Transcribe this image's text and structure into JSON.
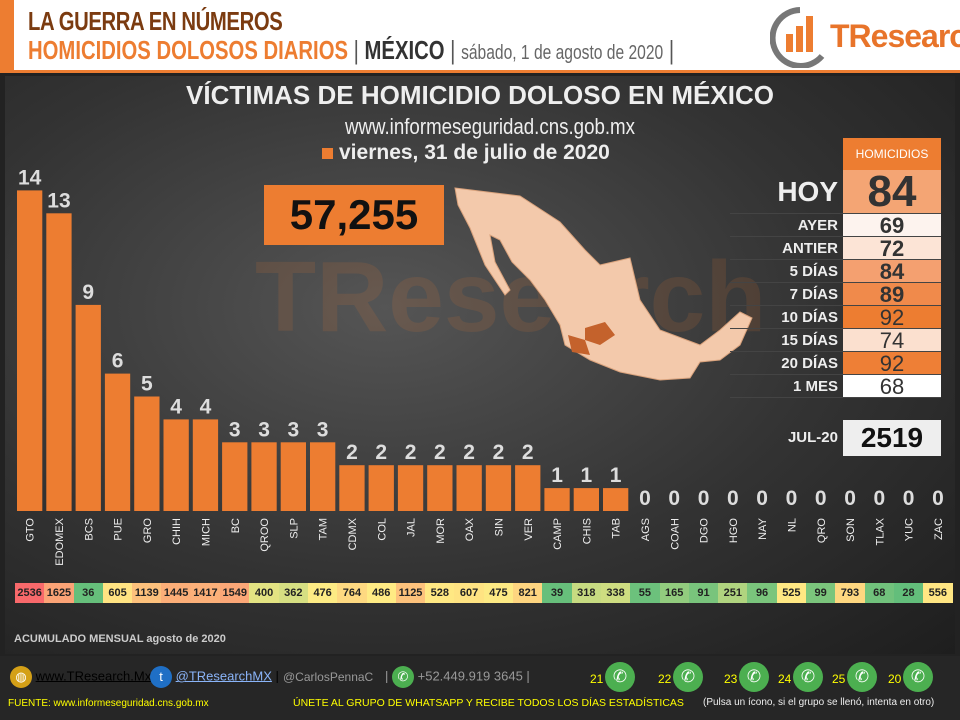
{
  "header": {
    "line1": "LA GUERRA EN NÚMEROS",
    "line2_orange": "HOMICIDIOS DOLOSOS DIARIOS",
    "country": "MÉXICO",
    "date": "sábado, 1 de agosto de 2020",
    "logo": "TResearch"
  },
  "colors": {
    "accent": "#ed7d31",
    "bar": "#ed7d31",
    "heat_low": "#63be7b",
    "heat_mid": "#ffeb84",
    "heat_high": "#f8696b"
  },
  "chart_data": {
    "type": "bar",
    "title": "VÍCTIMAS DE HOMICIDIO DOLOSO EN MÉXICO",
    "subtitle": "www.informeseguridad.cns.gob.mx",
    "legend": "viernes, 31 de julio de 2020",
    "categories": [
      "GTO",
      "EDOMEX",
      "BCS",
      "PUE",
      "GRO",
      "CHIH",
      "MICH",
      "BC",
      "QROO",
      "SLP",
      "TAM",
      "CDMX",
      "COL",
      "JAL",
      "MOR",
      "OAX",
      "SIN",
      "VER",
      "CAMP",
      "CHIS",
      "TAB",
      "AGS",
      "COAH",
      "DGO",
      "HGO",
      "NAY",
      "NL",
      "QRO",
      "SON",
      "TLAX",
      "YUC",
      "ZAC"
    ],
    "values": [
      14,
      13,
      9,
      6,
      5,
      4,
      4,
      3,
      3,
      3,
      3,
      2,
      2,
      2,
      2,
      2,
      2,
      2,
      1,
      1,
      1,
      0,
      0,
      0,
      0,
      0,
      0,
      0,
      0,
      0,
      0,
      0
    ],
    "monthly_accumulated": [
      2536,
      1625,
      36,
      605,
      1139,
      1445,
      1417,
      1549,
      400,
      362,
      476,
      764,
      486,
      1125,
      528,
      607,
      475,
      821,
      39,
      318,
      338,
      55,
      165,
      91,
      251,
      96,
      525,
      99,
      793,
      68,
      28,
      556
    ],
    "monthly_label": "ACUMULADO MENSUAL agosto de 2020",
    "grid": false
  },
  "total": "57,255",
  "watermark": "TResearch",
  "summary": {
    "header": "HOMICIDIOS",
    "today_label": "HOY",
    "today_value": "84",
    "rows": [
      {
        "label": "AYER",
        "value": "69",
        "color": "#fdf3ee"
      },
      {
        "label": "ANTIER",
        "value": "72",
        "color": "#fce4d6"
      },
      {
        "label": "5 DÍAS",
        "value": "84",
        "color": "#f4a070"
      },
      {
        "label": "7 DÍAS",
        "value": "89",
        "color": "#f08a4b"
      },
      {
        "label": "10 DÍAS",
        "value": "92",
        "color": "#ed7d31"
      },
      {
        "label": "15 DÍAS",
        "value": "74",
        "color": "#fbe0cf"
      },
      {
        "label": "20 DÍAS",
        "value": "92",
        "color": "#ee7f36"
      },
      {
        "label": "1 MES",
        "value": "68",
        "color": "#ffffff"
      }
    ],
    "month_label": "JUL-20",
    "month_value": "2519"
  },
  "footer": {
    "web": "www.TResearch.Mx",
    "twitter": "@TResearchMX",
    "twitter2": "@CarlosPennaC",
    "phone": "+52.449.919 3645",
    "source": "FUENTE:  www.informeseguridad.cns.gob.mx",
    "cta": "ÚNETE  AL GRUPO  DE  WHATSAPP  Y RECIBE  TODOS LOS DÍAS ESTADÍSTICAS",
    "cta_note": "(Pulsa un ícono, si el grupo se llenó, intenta en otro)",
    "groups": [
      "21",
      "22",
      "23",
      "24",
      "25",
      "20"
    ]
  }
}
